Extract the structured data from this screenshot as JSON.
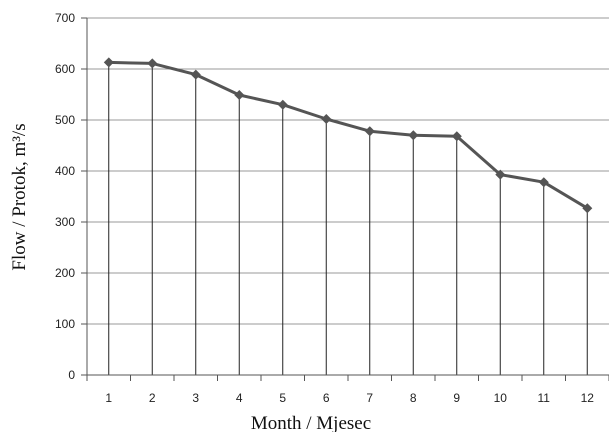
{
  "chart_data": {
    "type": "line",
    "title": "",
    "xlabel": "Month / Mjesec",
    "ylabel": "Flow / Protok, m³/s",
    "x": [
      1,
      2,
      3,
      4,
      5,
      6,
      7,
      8,
      9,
      10,
      11,
      12
    ],
    "x_tick_labels": [
      "1",
      "2",
      "3",
      "4",
      "5",
      "6",
      "7",
      "8",
      "9",
      "10",
      "11",
      "12"
    ],
    "y_tick_labels": [
      "0",
      "100",
      "200",
      "300",
      "400",
      "500",
      "600",
      "700"
    ],
    "ylim": [
      0,
      700
    ],
    "series": [
      {
        "values": [
          613,
          611,
          589,
          549,
          530,
          502,
          478,
          470,
          468,
          393,
          378,
          327
        ]
      }
    ],
    "drop_lines": true,
    "marker": "diamond",
    "grid": "horizontal",
    "legend": "none",
    "colors": {
      "line": "#555555",
      "marker": "#555555",
      "drop_line": "#222222",
      "grid": "#999999",
      "axis": "#555555"
    }
  }
}
